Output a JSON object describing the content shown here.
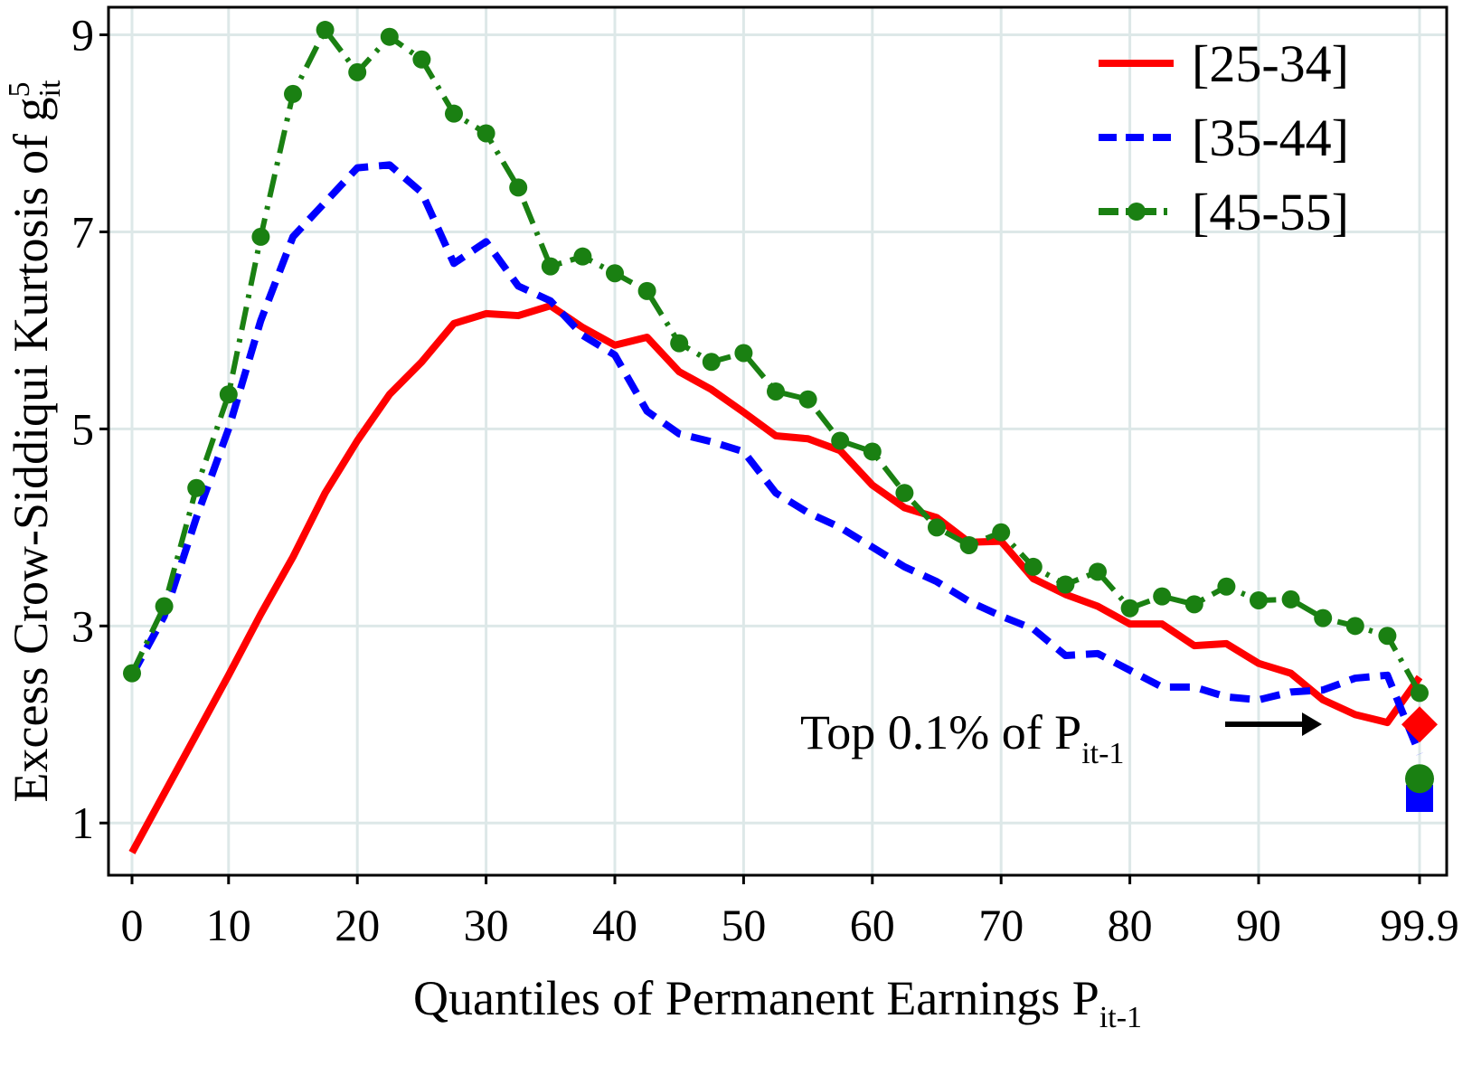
{
  "chart_data": {
    "type": "line",
    "xlabel": {
      "text": "Quantiles of Permanent Earnings P",
      "sub": "it-1"
    },
    "ylabel": {
      "text": "Excess Crow-Siddiqui Kurtosis of g",
      "sup": "5",
      "sub": "it"
    },
    "annotation": {
      "text": "Top 0.1% of P",
      "sub": "it-1"
    },
    "categories": [
      "0",
      null,
      null,
      "10",
      null,
      null,
      null,
      "20",
      null,
      null,
      null,
      "30",
      null,
      null,
      null,
      "40",
      null,
      null,
      null,
      "50",
      null,
      null,
      null,
      "60",
      null,
      null,
      null,
      "70",
      null,
      null,
      null,
      "80",
      null,
      null,
      null,
      "90",
      null,
      null,
      null,
      null,
      "99.9"
    ],
    "ylim": [
      0.47,
      9.28
    ],
    "yticks": [
      1,
      3,
      5,
      7,
      9
    ],
    "grid": true,
    "legend": "top-right",
    "series": [
      {
        "name": "[25-34]",
        "color": "#ff0000",
        "dash": "solid",
        "top_marker": "diamond",
        "top_value": 2.0,
        "values": [
          0.7,
          1.3,
          1.9,
          2.5,
          3.12,
          3.7,
          4.35,
          4.88,
          5.35,
          5.68,
          6.07,
          6.17,
          6.15,
          6.25,
          6.03,
          5.85,
          5.93,
          5.58,
          5.4,
          5.17,
          4.93,
          4.9,
          4.78,
          4.43,
          4.2,
          4.1,
          3.85,
          3.86,
          3.48,
          3.32,
          3.2,
          3.02,
          3.02,
          2.8,
          2.82,
          2.62,
          2.52,
          2.25,
          2.1,
          2.02,
          2.48
        ]
      },
      {
        "name": "[35-44]",
        "color": "#0000ff",
        "dash": "dashed",
        "top_marker": "square",
        "top_value": 1.25,
        "values": [
          2.5,
          3.1,
          4.1,
          5.0,
          6.1,
          6.95,
          7.3,
          7.65,
          7.68,
          7.4,
          6.68,
          6.9,
          6.45,
          6.3,
          5.95,
          5.75,
          5.18,
          4.95,
          4.87,
          4.77,
          4.35,
          4.15,
          4.0,
          3.8,
          3.6,
          3.45,
          3.25,
          3.1,
          2.97,
          2.7,
          2.72,
          2.55,
          2.38,
          2.38,
          2.28,
          2.25,
          2.33,
          2.35,
          2.47,
          2.5,
          1.7
        ]
      },
      {
        "name": "[45-55]",
        "color": "#1a8012",
        "dash": "dashdot",
        "markers": true,
        "top_marker": "circle",
        "top_value": 1.45,
        "values": [
          2.52,
          3.2,
          4.4,
          5.35,
          6.95,
          8.4,
          9.05,
          8.62,
          8.98,
          8.75,
          8.2,
          8.0,
          7.45,
          6.65,
          6.75,
          6.58,
          6.4,
          5.87,
          5.68,
          5.77,
          5.38,
          5.3,
          4.88,
          4.77,
          4.35,
          4.0,
          3.82,
          3.95,
          3.6,
          3.42,
          3.55,
          3.18,
          3.3,
          3.22,
          3.4,
          3.26,
          3.27,
          3.08,
          3.0,
          2.9,
          2.32
        ]
      }
    ]
  }
}
